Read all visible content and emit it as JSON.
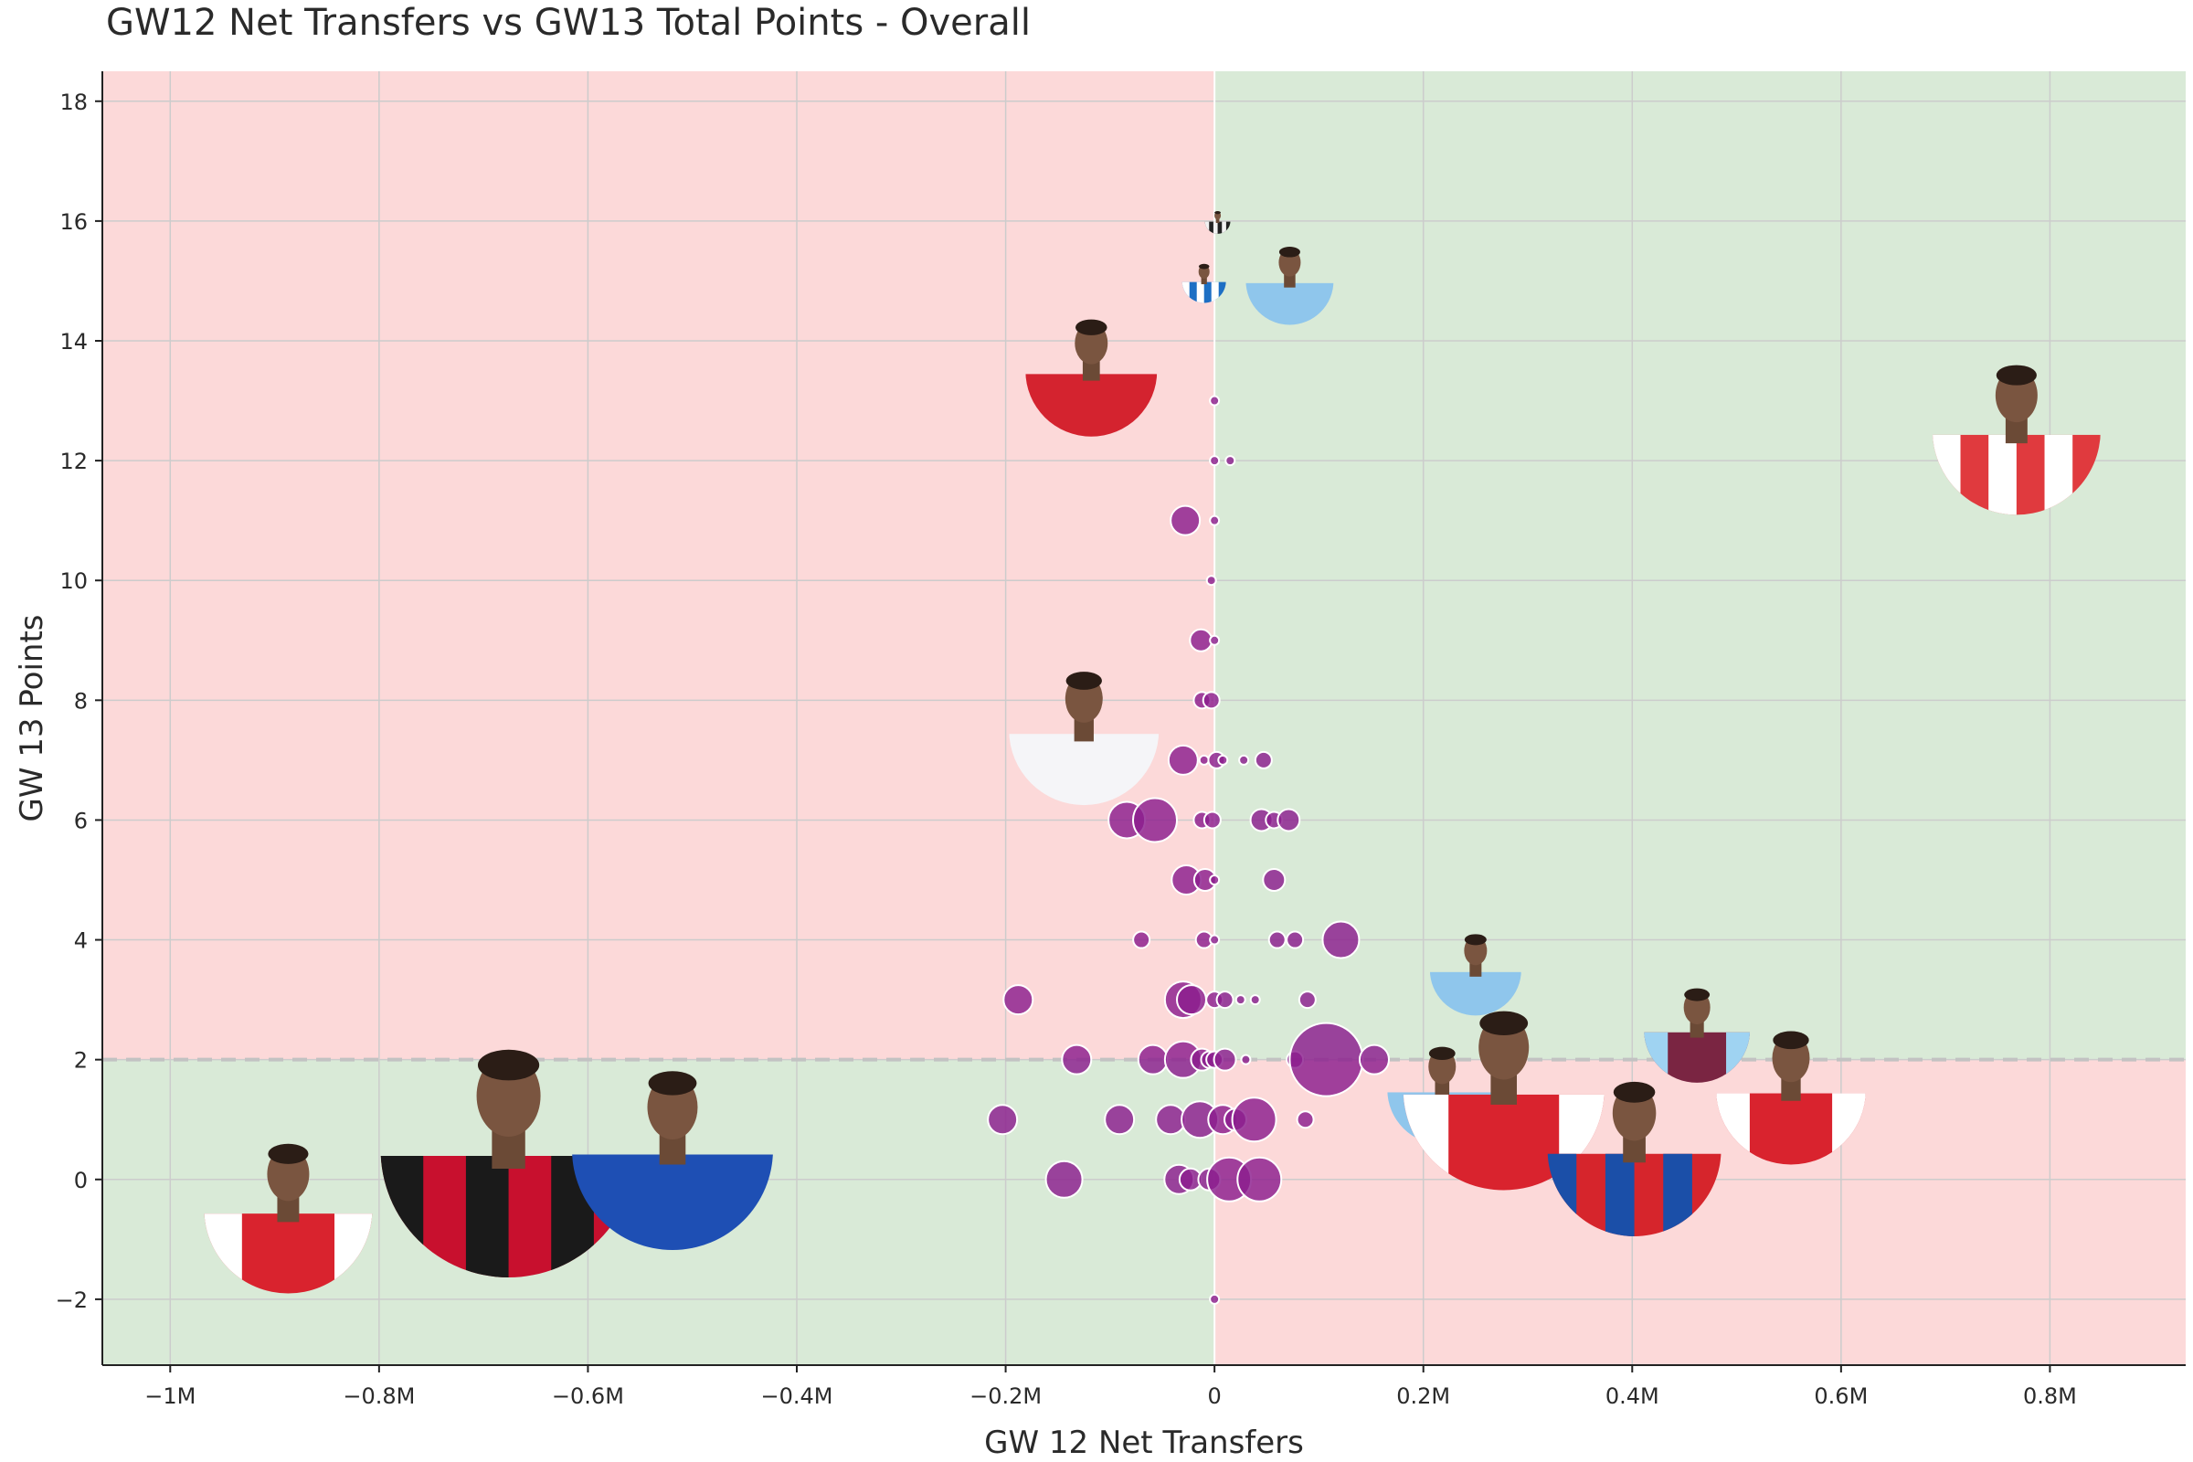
{
  "chart_data": {
    "type": "scatter",
    "title": "GW12 Net Transfers vs GW13 Total Points - Overall",
    "xlabel": "GW 12 Net Transfers",
    "ylabel": "GW 13 Points",
    "xlim": [
      -1065000,
      930000
    ],
    "ylim": [
      -3.1,
      18.5
    ],
    "x_ticks": [
      {
        "value": -1000000,
        "label": "−1M"
      },
      {
        "value": -800000,
        "label": "−0.8M"
      },
      {
        "value": -600000,
        "label": "−0.6M"
      },
      {
        "value": -400000,
        "label": "−0.4M"
      },
      {
        "value": -200000,
        "label": "−0.2M"
      },
      {
        "value": 0,
        "label": "0"
      },
      {
        "value": 200000,
        "label": "0.2M"
      },
      {
        "value": 400000,
        "label": "0.4M"
      },
      {
        "value": 600000,
        "label": "0.6M"
      },
      {
        "value": 800000,
        "label": "0.8M"
      }
    ],
    "y_ticks": [
      {
        "value": -2,
        "label": "−2"
      },
      {
        "value": 0,
        "label": "0"
      },
      {
        "value": 2,
        "label": "2"
      },
      {
        "value": 4,
        "label": "4"
      },
      {
        "value": 6,
        "label": "6"
      },
      {
        "value": 8,
        "label": "8"
      },
      {
        "value": 10,
        "label": "10"
      },
      {
        "value": 12,
        "label": "12"
      },
      {
        "value": 14,
        "label": "14"
      },
      {
        "value": 16,
        "label": "16"
      },
      {
        "value": 18,
        "label": "18"
      }
    ],
    "grid": true,
    "reference_lines": {
      "x": 0,
      "y": 2
    },
    "colors": {
      "positive_quadrant": "#d9ead7",
      "negative_quadrant": "#fcd9d9",
      "point_fill": "#8b1d8e",
      "point_edge": "#ffffff",
      "grid": "#cccccc",
      "ref_line": "#c2c2c2"
    },
    "points": [
      {
        "x": 0,
        "y": 13,
        "size": 0
      },
      {
        "x": 0,
        "y": 12,
        "size": 0
      },
      {
        "x": 15000,
        "y": 12,
        "size": 0
      },
      {
        "x": -28000,
        "y": 11,
        "size": 3
      },
      {
        "x": 0,
        "y": 11,
        "size": 0
      },
      {
        "x": -3000,
        "y": 10,
        "size": 0
      },
      {
        "x": -13000,
        "y": 9,
        "size": 2
      },
      {
        "x": 0,
        "y": 9,
        "size": 0
      },
      {
        "x": -12000,
        "y": 8,
        "size": 1
      },
      {
        "x": -3000,
        "y": 8,
        "size": 1
      },
      {
        "x": -30000,
        "y": 7,
        "size": 3
      },
      {
        "x": -10000,
        "y": 7,
        "size": 0
      },
      {
        "x": 2000,
        "y": 7,
        "size": 1
      },
      {
        "x": 8000,
        "y": 7,
        "size": 0
      },
      {
        "x": 28000,
        "y": 7,
        "size": 0
      },
      {
        "x": 47000,
        "y": 7,
        "size": 1
      },
      {
        "x": -84000,
        "y": 6,
        "size": 4
      },
      {
        "x": -57000,
        "y": 6,
        "size": 5
      },
      {
        "x": -12000,
        "y": 6,
        "size": 1
      },
      {
        "x": -2000,
        "y": 6,
        "size": 1
      },
      {
        "x": 45000,
        "y": 6,
        "size": 2
      },
      {
        "x": 57000,
        "y": 6,
        "size": 1
      },
      {
        "x": 71000,
        "y": 6,
        "size": 2
      },
      {
        "x": -27000,
        "y": 5,
        "size": 3
      },
      {
        "x": -9000,
        "y": 5,
        "size": 2
      },
      {
        "x": 0,
        "y": 5,
        "size": 0
      },
      {
        "x": 57000,
        "y": 5,
        "size": 2
      },
      {
        "x": -70000,
        "y": 4,
        "size": 1
      },
      {
        "x": -10000,
        "y": 4,
        "size": 1
      },
      {
        "x": 0,
        "y": 4,
        "size": 0
      },
      {
        "x": 60000,
        "y": 4,
        "size": 1
      },
      {
        "x": 77000,
        "y": 4,
        "size": 1
      },
      {
        "x": 121000,
        "y": 4,
        "size": 4
      },
      {
        "x": -188000,
        "y": 3,
        "size": 3
      },
      {
        "x": -30000,
        "y": 3,
        "size": 4
      },
      {
        "x": -22000,
        "y": 3,
        "size": 3
      },
      {
        "x": 0,
        "y": 3,
        "size": 1
      },
      {
        "x": 10000,
        "y": 3,
        "size": 1
      },
      {
        "x": 25000,
        "y": 3,
        "size": 0
      },
      {
        "x": 39000,
        "y": 3,
        "size": 0
      },
      {
        "x": 89000,
        "y": 3,
        "size": 1
      },
      {
        "x": -132000,
        "y": 2,
        "size": 3
      },
      {
        "x": -59000,
        "y": 2,
        "size": 3
      },
      {
        "x": -30000,
        "y": 2,
        "size": 4
      },
      {
        "x": -12000,
        "y": 2,
        "size": 2
      },
      {
        "x": -5000,
        "y": 2,
        "size": 1
      },
      {
        "x": 0,
        "y": 2,
        "size": 1
      },
      {
        "x": 10000,
        "y": 2,
        "size": 2
      },
      {
        "x": 30000,
        "y": 2,
        "size": 0
      },
      {
        "x": 77000,
        "y": 2,
        "size": 1
      },
      {
        "x": 107000,
        "y": 2,
        "size": 7
      },
      {
        "x": 153000,
        "y": 2,
        "size": 3
      },
      {
        "x": -203000,
        "y": 1,
        "size": 3
      },
      {
        "x": -91000,
        "y": 1,
        "size": 3
      },
      {
        "x": -42000,
        "y": 1,
        "size": 3
      },
      {
        "x": -14000,
        "y": 1,
        "size": 4
      },
      {
        "x": 8000,
        "y": 1,
        "size": 3
      },
      {
        "x": 20000,
        "y": 1,
        "size": 2
      },
      {
        "x": 38000,
        "y": 1,
        "size": 5
      },
      {
        "x": 87000,
        "y": 1,
        "size": 1
      },
      {
        "x": -144000,
        "y": 0,
        "size": 4
      },
      {
        "x": -34000,
        "y": 0,
        "size": 3
      },
      {
        "x": -23000,
        "y": 0,
        "size": 2
      },
      {
        "x": -5000,
        "y": 0,
        "size": 2
      },
      {
        "x": 14000,
        "y": 0,
        "size": 5
      },
      {
        "x": 43000,
        "y": 0,
        "size": 5
      },
      {
        "x": 0,
        "y": -2,
        "size": 0
      }
    ],
    "player_markers": [
      {
        "icon": "newcastle-striped-player-icon",
        "x": 3000,
        "y": 16,
        "radius": 14,
        "kit": "black-white-stripes"
      },
      {
        "icon": "brighton-player-icon",
        "x": -10000,
        "y": 15,
        "radius": 24,
        "kit": "blue-white-stripes"
      },
      {
        "icon": "man-city-player-icon",
        "x": 72000,
        "y": 15,
        "radius": 48,
        "kit": "sky-blue"
      },
      {
        "icon": "liverpool-player-icon",
        "x": -118000,
        "y": 13.5,
        "radius": 72,
        "kit": "red"
      },
      {
        "icon": "brentford-player-icon",
        "x": 768000,
        "y": 12.5,
        "radius": 92,
        "kit": "red-white-stripes"
      },
      {
        "icon": "tottenham-player-icon",
        "x": -125000,
        "y": 7.5,
        "radius": 82,
        "kit": "white"
      },
      {
        "icon": "man-city-player-icon",
        "x": 250000,
        "y": 3.5,
        "radius": 50,
        "kit": "sky-blue"
      },
      {
        "icon": "aston-villa-player-icon",
        "x": 462000,
        "y": 2.5,
        "radius": 58,
        "kit": "claret"
      },
      {
        "icon": "man-city-player-icon",
        "x": 218000,
        "y": 1.5,
        "radius": 60,
        "kit": "sky-blue"
      },
      {
        "icon": "arsenal-player-icon",
        "x": 277000,
        "y": 1.5,
        "radius": 110,
        "kit": "red-white"
      },
      {
        "icon": "arsenal-player-icon",
        "x": 552000,
        "y": 1.5,
        "radius": 82,
        "kit": "red-white"
      },
      {
        "icon": "crystal-palace-player-icon",
        "x": 402000,
        "y": 0.5,
        "radius": 95,
        "kit": "red-blue-stripes"
      },
      {
        "icon": "arsenal-player-icon",
        "x": -887000,
        "y": -0.5,
        "radius": 92,
        "kit": "red-white"
      },
      {
        "icon": "bournemouth-player-icon",
        "x": -676000,
        "y": 0.5,
        "radius": 140,
        "kit": "red-black-stripes"
      },
      {
        "icon": "chelsea-player-icon",
        "x": -519000,
        "y": 0.5,
        "radius": 110,
        "kit": "royal-blue"
      }
    ]
  }
}
